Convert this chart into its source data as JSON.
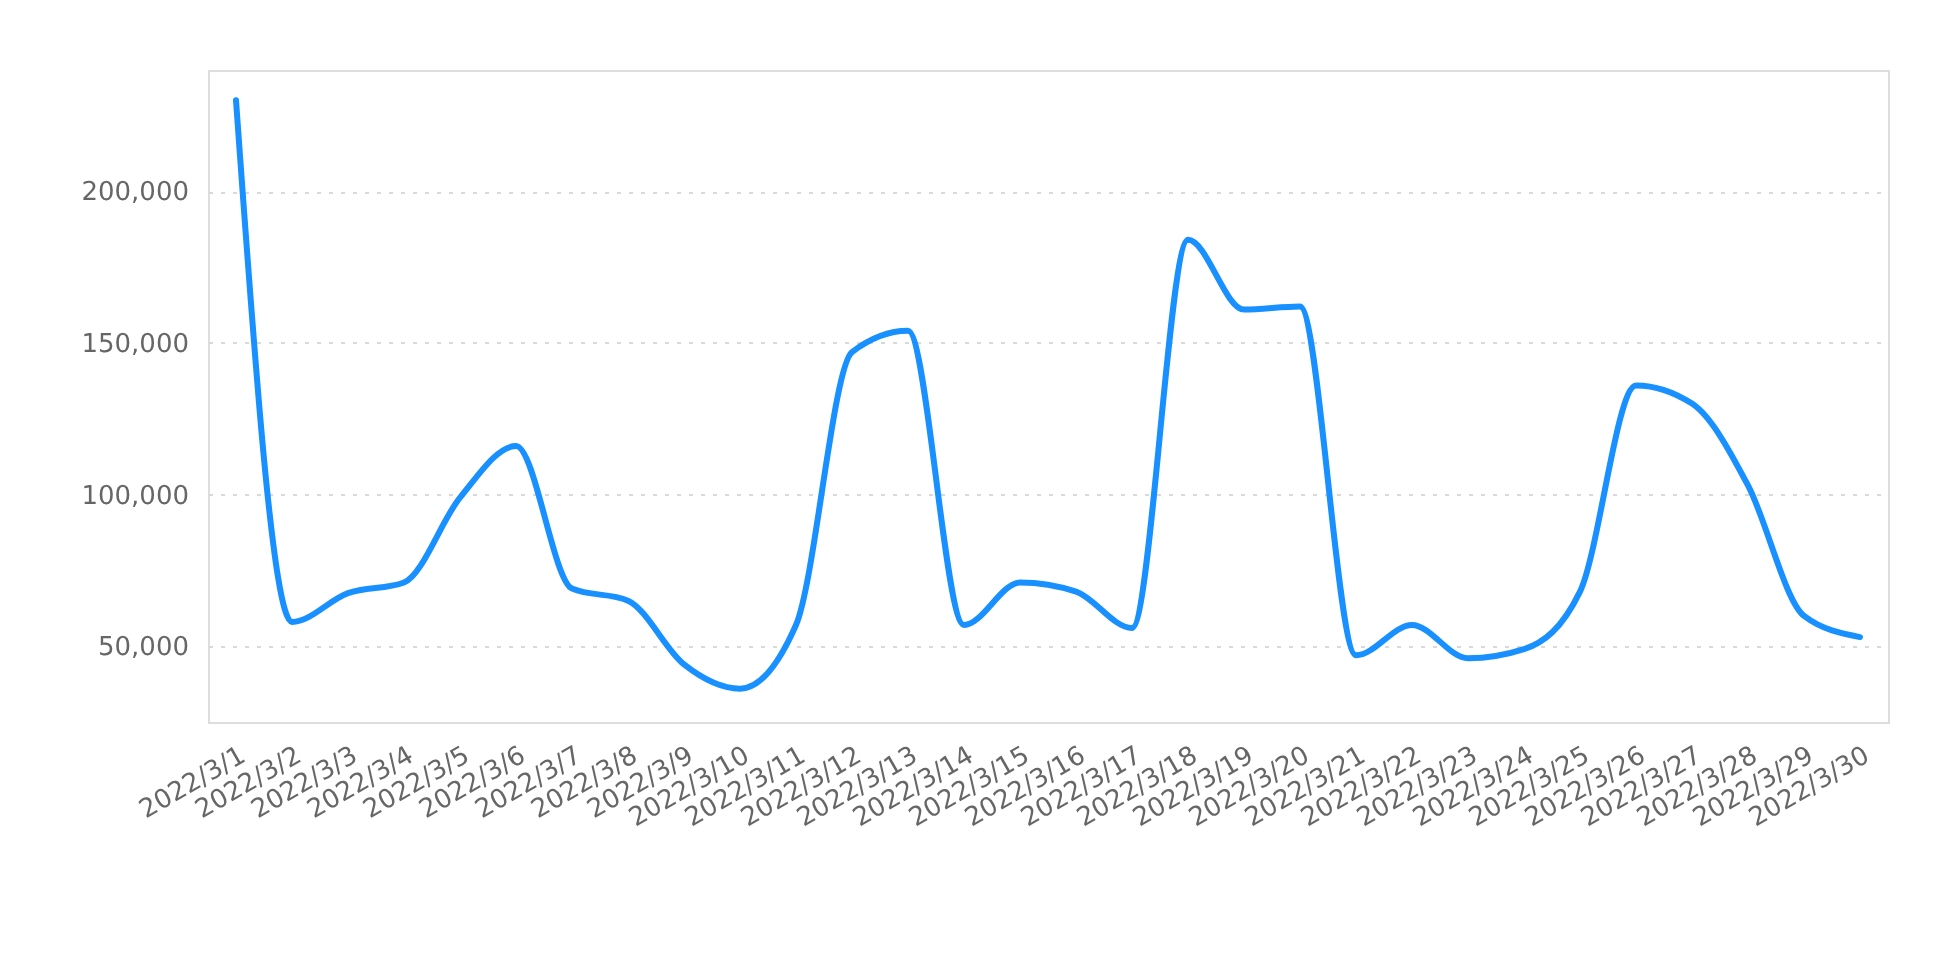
{
  "chart_data": {
    "type": "line",
    "categories": [
      "2022/3/1",
      "2022/3/2",
      "2022/3/3",
      "2022/3/4",
      "2022/3/5",
      "2022/3/6",
      "2022/3/7",
      "2022/3/8",
      "2022/3/9",
      "2022/3/10",
      "2022/3/11",
      "2022/3/12",
      "2022/3/13",
      "2022/3/14",
      "2022/3/15",
      "2022/3/16",
      "2022/3/17",
      "2022/3/18",
      "2022/3/19",
      "2022/3/20",
      "2022/3/21",
      "2022/3/22",
      "2022/3/23",
      "2022/3/24",
      "2022/3/25",
      "2022/3/26",
      "2022/3/27",
      "2022/3/28",
      "2022/3/29",
      "2022/3/30"
    ],
    "series": [
      {
        "color": "#1890ff",
        "values": [
          230000,
          58000,
          67500,
          71000,
          99000,
          116000,
          69000,
          65000,
          44000,
          36000,
          57000,
          147000,
          154000,
          57000,
          71000,
          68000,
          56000,
          184000,
          161000,
          162000,
          47000,
          57000,
          46000,
          49000,
          68000,
          136000,
          130000,
          103000,
          60000,
          53000
        ]
      }
    ],
    "ylim": [
      25000,
      240000
    ],
    "yticks": [
      {
        "value": 50000,
        "label": "50,000"
      },
      {
        "value": 100000,
        "label": "100,000"
      },
      {
        "value": 150000,
        "label": "150,000"
      },
      {
        "value": 200000,
        "label": "200,000"
      }
    ],
    "grid": "y"
  }
}
